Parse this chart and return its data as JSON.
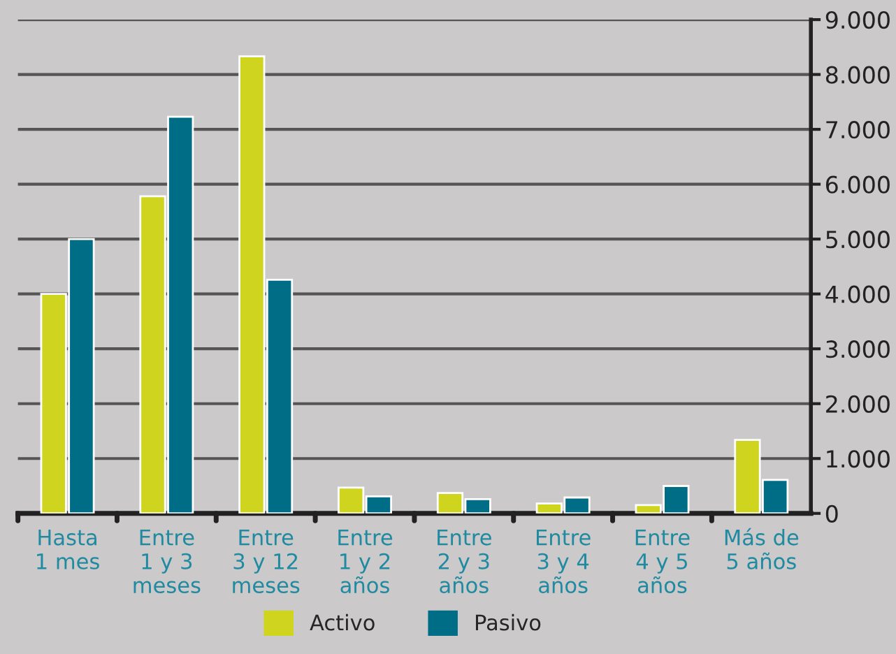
{
  "chart_data": {
    "type": "bar",
    "categories": [
      "Hasta\n1 mes",
      "Entre\n1 y 3\nmeses",
      "Entre\n3 y 12\nmeses",
      "Entre\n1 y 2\naños",
      "Entre\n2 y 3\naños",
      "Entre\n3 y 4\naños",
      "Entre\n4 y 5\naños",
      "Más de\n5 años"
    ],
    "series": [
      {
        "name": "Activo",
        "color": "#cfd51f",
        "values": [
          4000,
          5780,
          8330,
          470,
          370,
          180,
          150,
          1340
        ]
      },
      {
        "name": "Pasivo",
        "color": "#006d87",
        "values": [
          5000,
          7230,
          4260,
          310,
          260,
          290,
          500,
          610
        ]
      }
    ],
    "ylim": [
      0,
      9000
    ],
    "yticks": [
      {
        "value": 0,
        "label": "0"
      },
      {
        "value": 1000,
        "label": "1.000"
      },
      {
        "value": 2000,
        "label": "2.000"
      },
      {
        "value": 3000,
        "label": "3.000"
      },
      {
        "value": 4000,
        "label": "4.000"
      },
      {
        "value": 5000,
        "label": "5.000"
      },
      {
        "value": 6000,
        "label": "6.000"
      },
      {
        "value": 7000,
        "label": "7.000"
      },
      {
        "value": 8000,
        "label": "8.000"
      },
      {
        "value": 9000,
        "label": "9.000"
      }
    ],
    "grid": "y",
    "legend": "bottom"
  }
}
